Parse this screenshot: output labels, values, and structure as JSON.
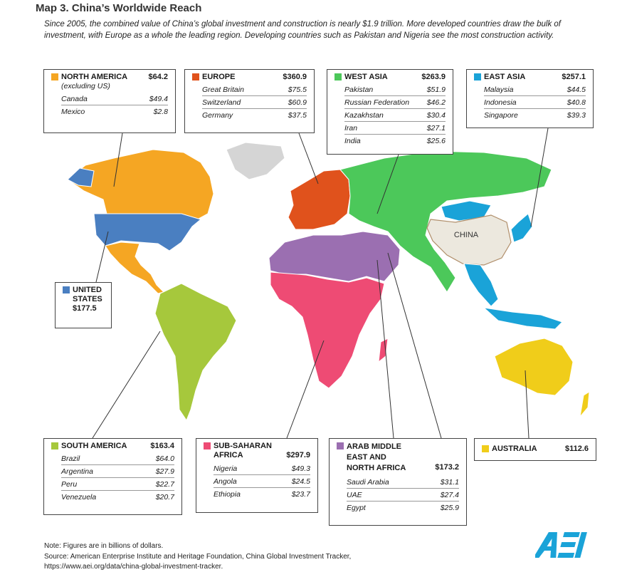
{
  "title": "Map 3. China’s Worldwide Reach",
  "subtitle": "Since 2005, the combined value of China’s global investment and construction is nearly $1.9 trillion. More developed countries draw the bulk of investment, with Europe as a whole the leading region. Developing countries such as Pakistan and Nigeria see the most construction activity.",
  "china_label": "CHINA",
  "colors": {
    "north_america": "#f5a623",
    "europe": "#e0521c",
    "west_asia": "#4cc85a",
    "east_asia": "#1aa3d8",
    "united_states": "#4a7fc1",
    "south_america": "#a6c83c",
    "sub_saharan_africa": "#ee4b74",
    "arab_mena": "#9b6fb1",
    "australia": "#f0cd1a",
    "china": "#ece8de",
    "other": "#d5d5d5"
  },
  "regions": {
    "north_america": {
      "name": "NORTH AMERICA",
      "total": "$64.2",
      "sub": "(excluding US)",
      "rows": [
        {
          "country": "Canada",
          "value": "$49.4"
        },
        {
          "country": "Mexico",
          "value": "$2.8"
        }
      ]
    },
    "europe": {
      "name": "EUROPE",
      "total": "$360.9",
      "rows": [
        {
          "country": "Great Britain",
          "value": "$75.5"
        },
        {
          "country": "Switzerland",
          "value": "$60.9"
        },
        {
          "country": "Germany",
          "value": "$37.5"
        }
      ]
    },
    "west_asia": {
      "name": "WEST ASIA",
      "total": "$263.9",
      "rows": [
        {
          "country": "Pakistan",
          "value": "$51.9"
        },
        {
          "country": "Russian Federation",
          "value": "$46.2"
        },
        {
          "country": "Kazakhstan",
          "value": "$30.4"
        },
        {
          "country": "Iran",
          "value": "$27.1"
        },
        {
          "country": "India",
          "value": "$25.6"
        }
      ]
    },
    "east_asia": {
      "name": "EAST ASIA",
      "total": "$257.1",
      "rows": [
        {
          "country": "Malaysia",
          "value": "$44.5"
        },
        {
          "country": "Indonesia",
          "value": "$40.8"
        },
        {
          "country": "Singapore",
          "value": "$39.3"
        }
      ]
    },
    "united_states": {
      "name_line1": "UNITED",
      "name_line2": "STATES",
      "total": "$177.5"
    },
    "south_america": {
      "name": "SOUTH AMERICA",
      "total": "$163.4",
      "rows": [
        {
          "country": "Brazil",
          "value": "$64.0"
        },
        {
          "country": "Argentina",
          "value": "$27.9"
        },
        {
          "country": "Peru",
          "value": "$22.7"
        },
        {
          "country": "Venezuela",
          "value": "$20.7"
        }
      ]
    },
    "sub_saharan_africa": {
      "name_line1": "SUB-SAHARAN",
      "name_line2": "AFRICA",
      "total": "$297.9",
      "rows": [
        {
          "country": "Nigeria",
          "value": "$49.3"
        },
        {
          "country": "Angola",
          "value": "$24.5"
        },
        {
          "country": "Ethiopia",
          "value": "$23.7"
        }
      ]
    },
    "arab_mena": {
      "name_line1": "ARAB MIDDLE",
      "name_line2": "EAST AND",
      "name_line3": "NORTH AFRICA",
      "total": "$173.2",
      "rows": [
        {
          "country": "Saudi Arabia",
          "value": "$31.1"
        },
        {
          "country": "UAE",
          "value": "$27.4"
        },
        {
          "country": "Egypt",
          "value": "$25.9"
        }
      ]
    },
    "australia": {
      "name": "AUSTRALIA",
      "total": "$112.6"
    }
  },
  "note": "Note: Figures are in billions of dollars.",
  "source": "Source: American Enterprise Institute and Heritage Foundation, China Global Investment Tracker,",
  "source_url": "https://www.aei.org/data/china-global-investment-tracker.",
  "logo_text": "AEI"
}
